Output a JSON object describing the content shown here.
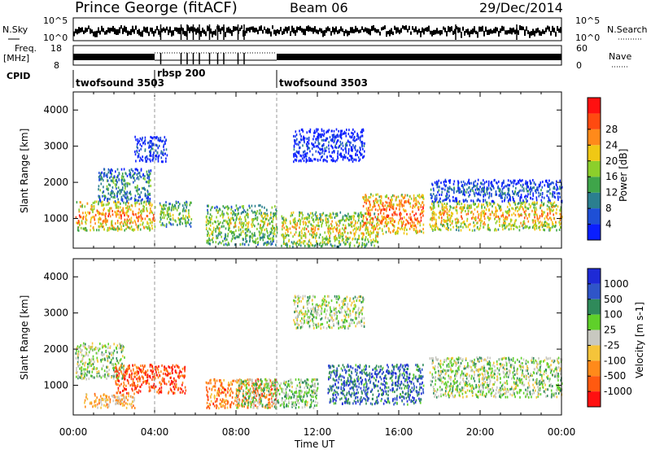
{
  "header": {
    "station": "Prince George (fitACF)",
    "beam": "Beam 06",
    "date": "29/Dec/2014"
  },
  "top_panels": {
    "nsky_label": "N.Sky",
    "nsky_ticks": [
      "10^5",
      "10^0"
    ],
    "nsearch_label": "N.Search",
    "nsearch_ticks": [
      "10^5",
      "10^0"
    ],
    "freq_label": "Freq.",
    "freq_unit": "[MHz]",
    "freq_ticks": [
      "18",
      "8"
    ],
    "nave_label": "Nave",
    "nave_ticks": [
      "60",
      "0"
    ],
    "cpid_label": "CPID",
    "cpid_segments": [
      {
        "label": "twofsound 3503",
        "start_hour": 0
      },
      {
        "label": "rbsp 200",
        "start_hour": 4
      },
      {
        "label": "twofsound 3503",
        "start_hour": 10
      }
    ]
  },
  "panel_axis": {
    "ylabel": "Slant Range [km]",
    "yticks": [
      "1000",
      "2000",
      "3000",
      "4000"
    ],
    "xlabel": "Time UT",
    "xticks": [
      "00:00",
      "04:00",
      "08:00",
      "12:00",
      "16:00",
      "20:00",
      "00:00"
    ]
  },
  "chart_data": [
    {
      "type": "heatmap",
      "title": "",
      "xlabel": "",
      "ylabel": "Slant Range [km]",
      "x_range_hours": [
        0,
        24
      ],
      "ylim": [
        180,
        4500
      ],
      "colorbar": {
        "label": "Power [dB]",
        "ticks": [
          "4",
          "8",
          "12",
          "16",
          "20",
          "24",
          "28"
        ],
        "colors": [
          "#0a1eff",
          "#1e4fd6",
          "#2b7f8f",
          "#3fa54a",
          "#8ccf2b",
          "#f0c814",
          "#ff8a1a",
          "#ff4a10",
          "#ff1010"
        ]
      },
      "bands": [
        {
          "start_hour": 0.1,
          "end_hour": 4.0,
          "range_km": [
            700,
            1500
          ],
          "level": 0.75
        },
        {
          "start_hour": 1.2,
          "end_hour": 3.8,
          "range_km": [
            1500,
            2400
          ],
          "level": 0.4
        },
        {
          "start_hour": 3.0,
          "end_hour": 4.6,
          "range_km": [
            2600,
            3300
          ],
          "level": 0.2
        },
        {
          "start_hour": 4.2,
          "end_hour": 5.8,
          "range_km": [
            800,
            1500
          ],
          "level": 0.55
        },
        {
          "start_hour": 6.5,
          "end_hour": 10.0,
          "range_km": [
            300,
            1400
          ],
          "level": 0.55
        },
        {
          "start_hour": 10.2,
          "end_hour": 15.0,
          "range_km": [
            250,
            1200
          ],
          "level": 0.65
        },
        {
          "start_hour": 10.8,
          "end_hour": 14.3,
          "range_km": [
            2600,
            3500
          ],
          "level": 0.15
        },
        {
          "start_hour": 14.2,
          "end_hour": 17.2,
          "range_km": [
            600,
            1700
          ],
          "level": 0.82
        },
        {
          "start_hour": 17.5,
          "end_hour": 24.0,
          "range_km": [
            700,
            1500
          ],
          "level": 0.7
        },
        {
          "start_hour": 17.5,
          "end_hour": 24.0,
          "range_km": [
            1500,
            2100
          ],
          "level": 0.25
        }
      ]
    },
    {
      "type": "heatmap",
      "title": "",
      "xlabel": "Time UT",
      "ylabel": "Slant Range [km]",
      "x_range_hours": [
        0,
        24
      ],
      "ylim": [
        180,
        4500
      ],
      "colorbar": {
        "label": "Velocity [m s-1]",
        "ticks": [
          "1000",
          "500",
          "100",
          "25",
          "-25",
          "-100",
          "-500",
          "-1000"
        ],
        "colors": [
          "#1e2ad6",
          "#2f55c8",
          "#2f8a5a",
          "#5fd02a",
          "#c8c8c0",
          "#f5c43a",
          "#ff8a1a",
          "#ff5a10",
          "#ff1010"
        ]
      },
      "bands": [
        {
          "start_hour": 0.1,
          "end_hour": 2.5,
          "range_km": [
            1200,
            2200
          ],
          "level": 0.45
        },
        {
          "start_hour": 2.0,
          "end_hour": 5.5,
          "range_km": [
            800,
            1600
          ],
          "level": 0.85
        },
        {
          "start_hour": 0.5,
          "end_hour": 3.0,
          "range_km": [
            400,
            800
          ],
          "level": 0.62
        },
        {
          "start_hour": 6.5,
          "end_hour": 10.0,
          "range_km": [
            400,
            1200
          ],
          "level": 0.75
        },
        {
          "start_hour": 8.0,
          "end_hour": 12.0,
          "range_km": [
            400,
            1200
          ],
          "level": 0.4
        },
        {
          "start_hour": 12.5,
          "end_hour": 17.2,
          "range_km": [
            500,
            1600
          ],
          "level": 0.2
        },
        {
          "start_hour": 10.8,
          "end_hour": 14.3,
          "range_km": [
            2600,
            3500
          ],
          "level": 0.45
        },
        {
          "start_hour": 17.5,
          "end_hour": 24.0,
          "range_km": [
            700,
            1800
          ],
          "level": 0.45
        }
      ]
    }
  ]
}
